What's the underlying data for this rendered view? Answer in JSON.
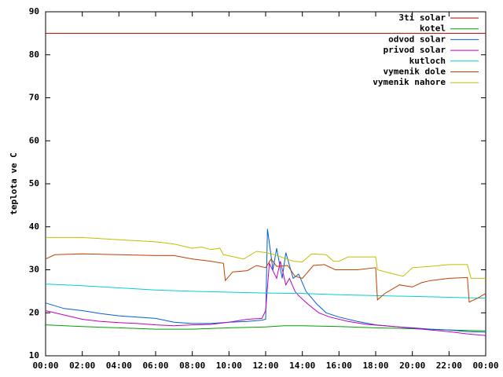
{
  "chart_data": {
    "type": "line",
    "y_label": "teplota ve C",
    "xlim": [
      0,
      24
    ],
    "xticks": [
      {
        "value": 0,
        "label": "00:00"
      },
      {
        "value": 2,
        "label": "02:00"
      },
      {
        "value": 4,
        "label": "04:00"
      },
      {
        "value": 6,
        "label": "06:00"
      },
      {
        "value": 8,
        "label": "08:00"
      },
      {
        "value": 10,
        "label": "10:00"
      },
      {
        "value": 12,
        "label": "12:00"
      },
      {
        "value": 14,
        "label": "14:00"
      },
      {
        "value": 16,
        "label": "16:00"
      },
      {
        "value": 18,
        "label": "18:00"
      },
      {
        "value": 20,
        "label": "20:00"
      },
      {
        "value": 22,
        "label": "22:00"
      },
      {
        "value": 24,
        "label": "00:00"
      }
    ],
    "ylim": [
      10,
      90
    ],
    "yticks": [
      10,
      20,
      30,
      40,
      50,
      60,
      70,
      80,
      90
    ],
    "legend": "top-right",
    "series": [
      {
        "name": "3ti solar",
        "color": "#b00000",
        "x": [
          0,
          24
        ],
        "values": [
          85,
          85
        ]
      },
      {
        "name": "kotel",
        "color": "#00a000",
        "x": [
          0,
          2,
          4,
          6,
          8,
          10,
          12,
          13,
          14,
          16,
          18,
          20,
          22,
          24
        ],
        "values": [
          17.2,
          16.8,
          16.5,
          16.2,
          16.2,
          16.5,
          16.7,
          17,
          17,
          16.8,
          16.5,
          16.3,
          16,
          15.8
        ]
      },
      {
        "name": "odvod solar",
        "color": "#0060d0",
        "x": [
          0,
          1,
          2,
          3,
          4,
          5,
          6,
          7,
          8,
          9,
          10,
          11,
          11.8,
          12,
          12.1,
          12.4,
          12.6,
          12.9,
          13.1,
          13.5,
          13.8,
          14.2,
          14.8,
          15.3,
          16,
          17,
          18,
          19,
          20,
          21,
          22,
          23,
          24
        ],
        "values": [
          22.3,
          21,
          20.5,
          19.8,
          19.3,
          19,
          18.7,
          17.8,
          17.5,
          17.5,
          17.8,
          18,
          18.3,
          18.5,
          39.5,
          30,
          35,
          28,
          34,
          28,
          29,
          25,
          22,
          20,
          19,
          18,
          17.2,
          16.8,
          16.5,
          16.2,
          16,
          15.6,
          15.5
        ]
      },
      {
        "name": "privod solar",
        "color": "#c000c0",
        "x": [
          0,
          1,
          2,
          3,
          4,
          5,
          6,
          7,
          8,
          9,
          10,
          11,
          11.8,
          12,
          12.2,
          12.6,
          12.8,
          13.1,
          13.3,
          13.6,
          13.8,
          14.3,
          14.9,
          15.5,
          16.5,
          17.5,
          19,
          20,
          21,
          22,
          23,
          24
        ],
        "values": [
          20.5,
          19.5,
          18.5,
          18,
          17.7,
          17.5,
          17.2,
          17,
          17.2,
          17.3,
          17.8,
          18.5,
          18.7,
          20.5,
          31.5,
          28,
          32,
          26.5,
          28,
          25,
          24,
          22,
          20,
          19,
          18,
          17.3,
          16.8,
          16.4,
          16,
          15.6,
          15.1,
          14.7
        ]
      },
      {
        "name": "kutloch",
        "color": "#00d0d0",
        "x": [
          0,
          2,
          4,
          6,
          8,
          10,
          12,
          14,
          16,
          18,
          20,
          22,
          24
        ],
        "values": [
          26.7,
          26.3,
          25.8,
          25.3,
          25,
          24.8,
          24.6,
          24.5,
          24.2,
          24,
          23.8,
          23.6,
          23.4
        ]
      },
      {
        "name": "vymenik dole",
        "color": "#c04000",
        "x": [
          0,
          0.5,
          2,
          4,
          6,
          7,
          8,
          9,
          9.7,
          9.8,
          10.2,
          11,
          11.5,
          12,
          12.3,
          12.6,
          13.2,
          13.6,
          14,
          14.6,
          15.2,
          15.8,
          17,
          18,
          18.1,
          18.5,
          19.3,
          20,
          20.5,
          21,
          22,
          23,
          23.1,
          23.6,
          24
        ],
        "values": [
          32.5,
          33.5,
          33.7,
          33.5,
          33.3,
          33.3,
          32.5,
          32,
          31.5,
          27.5,
          29.5,
          29.8,
          31,
          30.5,
          32.5,
          30.8,
          31,
          28.5,
          28,
          31,
          31.2,
          30,
          30,
          30.5,
          23,
          24.5,
          26.5,
          26,
          27,
          27.5,
          28,
          28.2,
          22.5,
          23.5,
          24.5
        ]
      },
      {
        "name": "vymenik nahore",
        "color": "#c0c000",
        "x": [
          0,
          2,
          4,
          6,
          7,
          8,
          8.5,
          9,
          9.5,
          9.7,
          10.3,
          10.8,
          11.5,
          12,
          12.5,
          13.5,
          14,
          14.5,
          15.3,
          15.7,
          16,
          16.5,
          18,
          18.1,
          19,
          19.5,
          20,
          21,
          22,
          23,
          23.2,
          24
        ],
        "values": [
          37.5,
          37.5,
          37,
          36.5,
          36,
          35,
          35.3,
          34.7,
          35,
          33.5,
          33,
          32.5,
          34.3,
          34,
          33.5,
          32,
          31.8,
          33.7,
          33.5,
          32,
          32,
          33,
          33,
          30,
          29,
          28.5,
          30.5,
          30.8,
          31.2,
          31.2,
          28,
          28
        ]
      }
    ]
  }
}
